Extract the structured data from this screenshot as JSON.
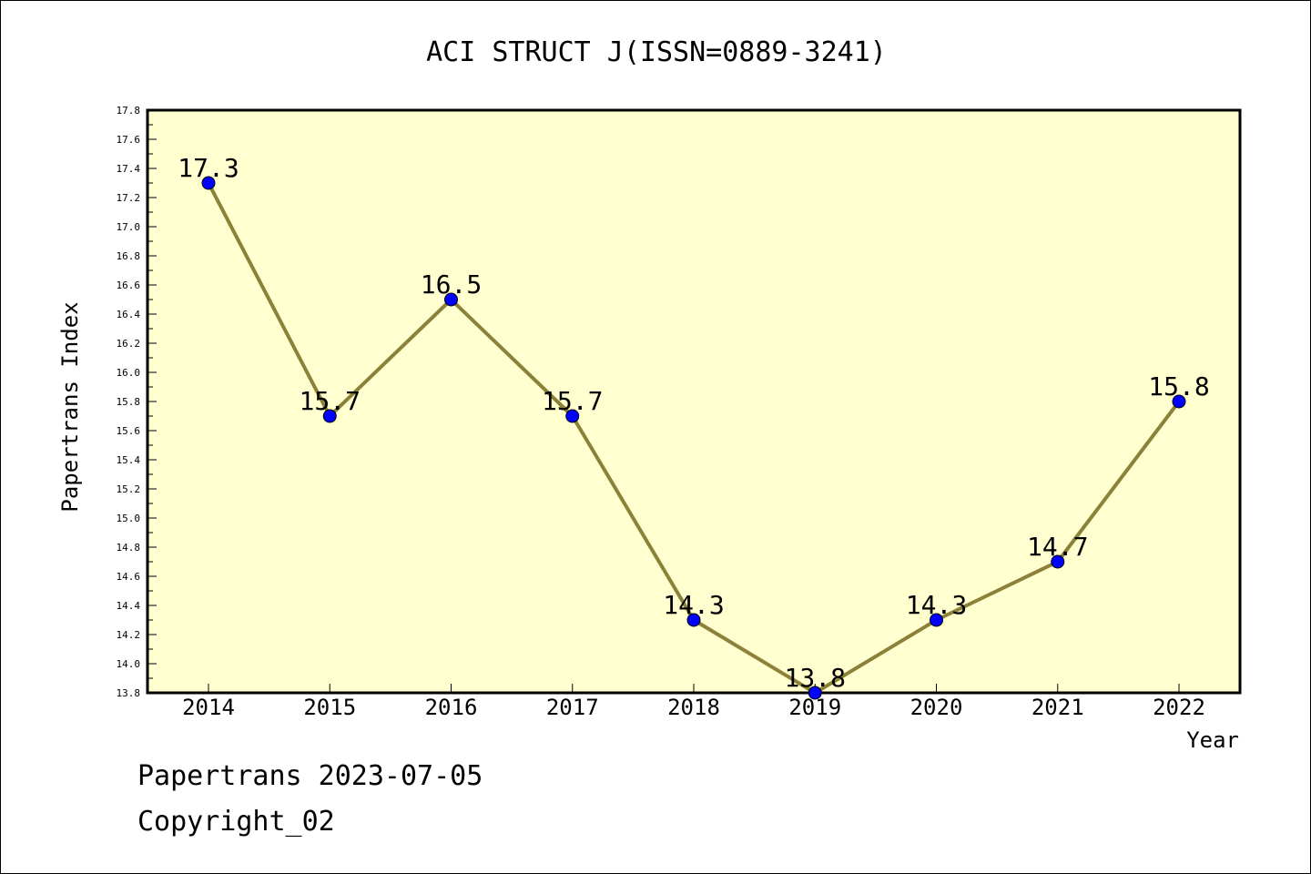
{
  "chart_data": {
    "type": "line",
    "title": "ACI STRUCT J(ISSN=0889-3241)",
    "xlabel": "Year",
    "ylabel": "Papertrans Index",
    "categories": [
      "2014",
      "2015",
      "2016",
      "2017",
      "2018",
      "2019",
      "2020",
      "2021",
      "2022"
    ],
    "values": [
      17.3,
      15.7,
      16.5,
      15.7,
      14.3,
      13.8,
      14.3,
      14.7,
      15.8
    ],
    "data_labels": [
      "17.3",
      "15.7",
      "16.5",
      "15.7",
      "14.3",
      "13.8",
      "14.3",
      "14.7",
      "15.8"
    ],
    "ylim": [
      13.8,
      17.8
    ],
    "yticks": [
      "13.8",
      "14.0",
      "14.2",
      "14.4",
      "14.6",
      "14.8",
      "15.0",
      "15.2",
      "15.4",
      "15.6",
      "15.8",
      "16.0",
      "16.2",
      "16.4",
      "16.6",
      "16.8",
      "17.0",
      "17.2",
      "17.4",
      "17.6",
      "17.8"
    ],
    "grid": false,
    "colors": {
      "plot_background": "#ffffd0",
      "line": "#8b8139",
      "marker": "#0000ff"
    }
  },
  "footer": {
    "line1": "Papertrans 2023-07-05",
    "line2": "Copyright_02"
  }
}
